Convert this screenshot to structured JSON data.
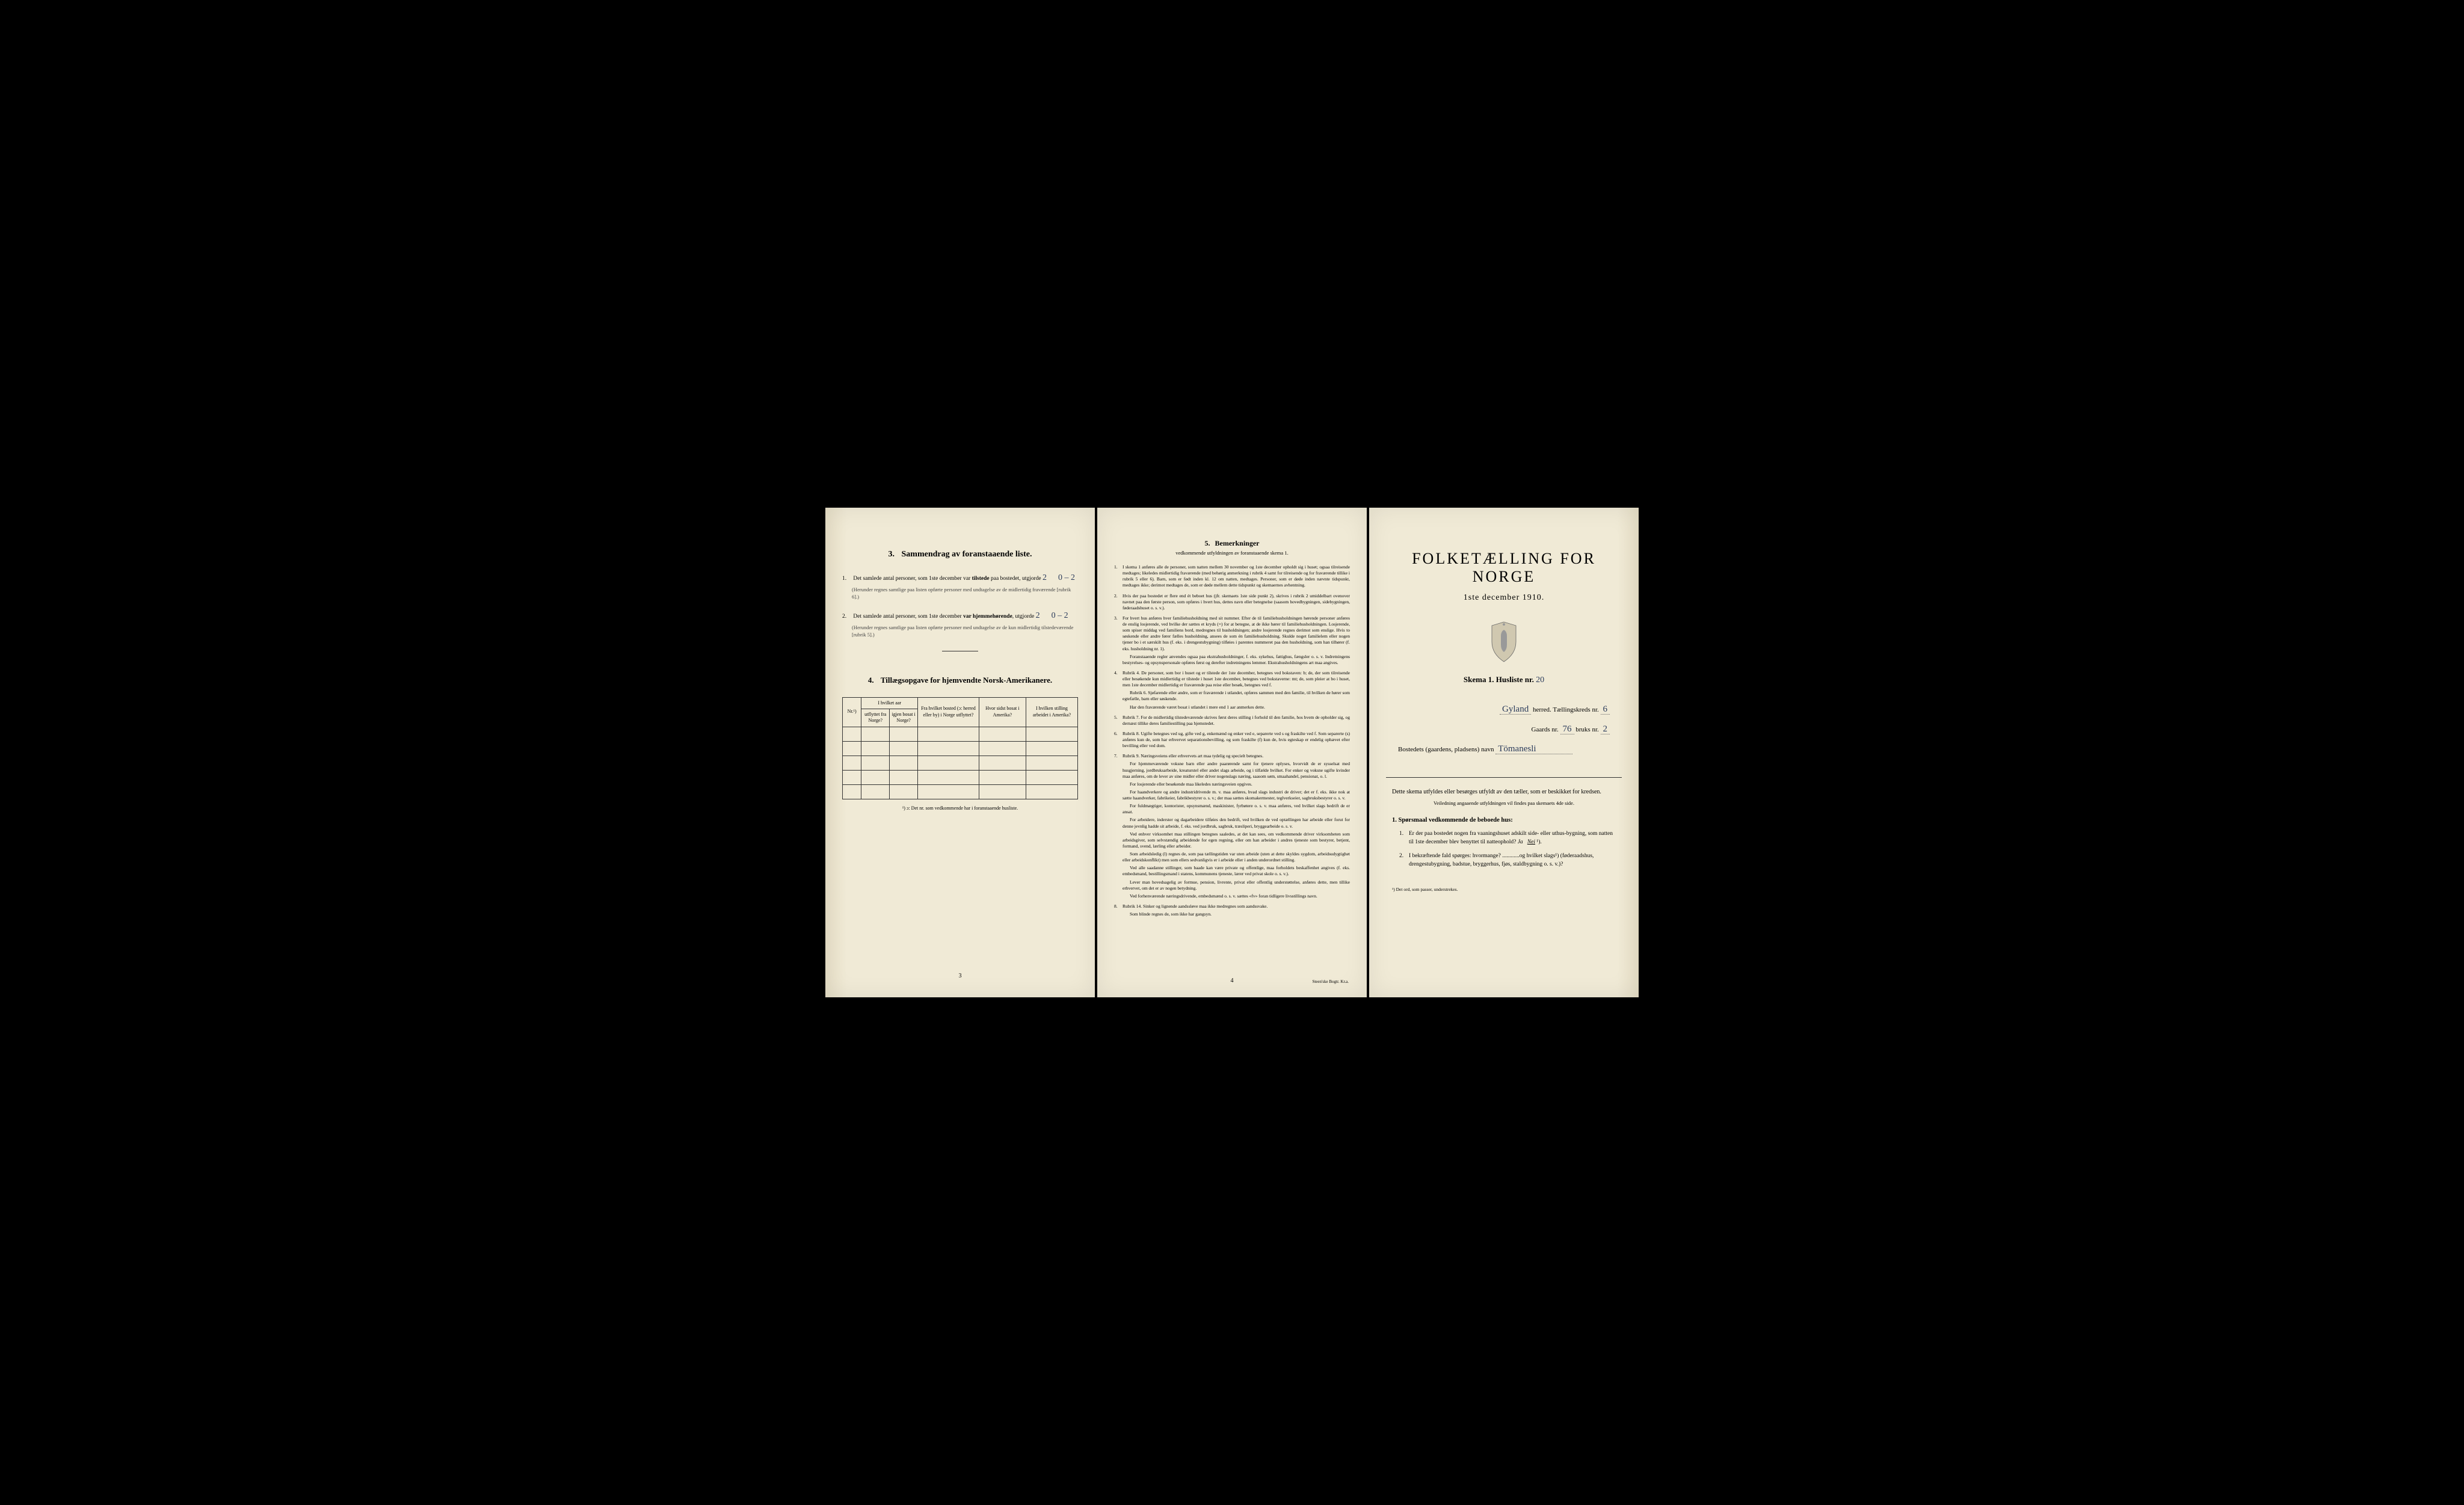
{
  "page1": {
    "section3": {
      "num": "3.",
      "title": "Sammendrag av foranstaaende liste.",
      "item1": {
        "num": "1.",
        "text_a": "Det samlede antal personer, som 1ste december var ",
        "text_b": "tilstede",
        "text_c": " paa bostedet, utgjorde ",
        "hw1": "2",
        "hw2": "0 – 2",
        "note": "(Herunder regnes samtlige paa listen opførte personer med undtagelse av de midlertidig fraværende [rubrik 6].)"
      },
      "item2": {
        "num": "2.",
        "text_a": "Det samlede antal personer, som 1ste december ",
        "text_b": "var hjemmehørende",
        "text_c": ", utgjorde ",
        "hw1": "2",
        "hw2": "0 – 2",
        "note": "(Herunder regnes samtlige paa listen opførte personer med undtagelse av de kun midlertidig tilstedeværende [rubrik 5].)"
      }
    },
    "section4": {
      "num": "4.",
      "title": "Tillægsopgave for hjemvendte Norsk-Amerikanere.",
      "headers": {
        "nr": "Nr.¹)",
        "aar_group": "I hvilket aar",
        "utflyttet": "utflyttet fra Norge?",
        "igjen": "igjen bosat i Norge?",
        "bosted": "Fra hvilket bosted (ɔ: herred eller by) i Norge utflyttet?",
        "amerika_bosat": "Hvor sidst bosat i Amerika?",
        "amerika_stilling": "I hvilken stilling arbeidet i Amerika?"
      },
      "footnote": "¹) ɔ: Det nr. som vedkommende har i foranstaaende husliste."
    },
    "pagenum": "3"
  },
  "page2": {
    "title_num": "5.",
    "title_main": "Bemerkninger",
    "title_sub": "vedkommende utfyldningen av foranstaaende skema 1.",
    "items": [
      {
        "num": "1.",
        "text": "I skema 1 anføres alle de personer, som natten mellem 30 november og 1ste december opholdt sig i huset; ogsaa tilreisende medtages; likeledes midlertidig fraværende (med behørig anmerkning i rubrik 4 samt for tilreisende og for fraværende tillike i rubrik 5 eller 6). Barn, som er født inden kl. 12 om natten, medtages. Personer, som er døde inden nævnte tidspunkt, medtages ikke; derimot medtages de, som er døde mellem dette tidspunkt og skemaernes avhentning."
      },
      {
        "num": "2.",
        "text": "Hvis der paa bostedet er flere end ét beboet hus (jfr. skemaets 1ste side punkt 2), skrives i rubrik 2 umiddelbart ovenover navnet paa den første person, som opføres i hvert hus, dettes navn eller betegnelse (saasom hovedbygningen, sidebygningen, føderaadshuset o. s. v.)."
      },
      {
        "num": "3.",
        "text": "For hvert hus anføres hver familiehusholdning med sit nummer. Efter de til familiehusholdningen hørende personer anføres de enslig losjerende, ved hvilke der sættes et kryds (×) for at betegne, at de ikke hører til familiehusholdningen. Losjerende, som spiser middag ved familiens bord, medregnes til husholdningen; andre losjerende regnes derimot som enslige. Hvis to søskende eller andre fører fælles husholdning, ansees de som én familiehusholdning. Skulde noget familielem eller nogen tjener bo i et særskilt hus (f. eks. i drengestubygning) tilføies i parentes nummeret paa den husholdning, som han tilhører (f. eks. husholdning nr. 1).",
        "paras": [
          "Foranstaaende regler anvendes ogsaa paa ekstrahusholdninger, f. eks. sykehus, fattighus, fængsler o. s. v. Indretningens bestyrelses- og opsynspersonale opføres først og derefter indretningens lemmer. Ekstrahusholdningens art maa angives."
        ]
      },
      {
        "num": "4.",
        "text": "Rubrik 4. De personer, som bor i huset og er tilstede der 1ste december, betegnes ved bokstaven: b; de, der som tilreisende eller besøkende kun midlertidig er tilstede i huset 1ste december, betegnes ved bokstaverne: mt; de, som pleier at bo i huset, men 1ste december midlertidig er fraværende paa reise eller besøk, betegnes ved f.",
        "paras": [
          "Rubrik 6. Sjøfarende eller andre, som er fraværende i utlandet, opføres sammen med den familie, til hvilken de hører som egtefælle, barn eller søskende.",
          "Har den fraværende været bosat i utlandet i mere end 1 aar anmerkes dette."
        ]
      },
      {
        "num": "5.",
        "text": "Rubrik 7. For de midlertidig tilstedeværende skrives først deres stilling i forhold til den familie, hos hvem de opholder sig, og dernæst tillike deres familiestilling paa hjemstedet."
      },
      {
        "num": "6.",
        "text": "Rubrik 8. Ugifte betegnes ved ug, gifte ved g, enkemænd og enker ved e, separerte ved s og fraskilte ved f. Som separerte (s) anføres kun de, som har erhvervet separationsbevilling, og som fraskilte (f) kun de, hvis egteskap er endelig ophævet efter bevilling eller ved dom."
      },
      {
        "num": "7.",
        "text": "Rubrik 9. Næringsveiens eller erhvervets art maa tydelig og specielt betegnes.",
        "paras": [
          "For hjemmeværende voksne barn eller andre paarørende samt for tjenere oplyses, hvorvidt de er sysselsat med husgjerning, jordbruksarbeide, kreaturstel eller andet slags arbeide, og i tilfælde hvilket. For enker og voksne ugifte kvinder maa anføres, om de lever av sine midler eller driver nogenslags næring, saasom søm, smaahandel, pensionat, o. l.",
          "For losjerende eller besøkende maa likeledes næringsveien opgives.",
          "For haandverkere og andre industridrivende m. v. maa anføres, hvad slags industri de driver; det er f. eks. ikke nok at sætte haandverker, fabrikeier, fabrikbestyrer o. s. v.; der maa sættes skomakermester, teglverkseier, sagbruksbestyrer o. s. v.",
          "For fuldmægtiger, kontorister, opsynsmænd, maskinister, fyrbøtere o. s. v. maa anføres, ved hvilket slags bedrift de er ansat.",
          "For arbeidere, inderster og dagarbeidere tilføies den bedrift, ved hvilken de ved optællingen har arbeide eller forut for denne jevnlig hadde sit arbeide, f. eks. ved jordbruk, sagbruk, træsliperi, bryggearbeide o. s. v.",
          "Ved enhver virksomhet maa stillingen betegnes saaledes, at det kan sees, om vedkommende driver virksomheten som arbeidsgiver, som selvstændig arbeidende for egen regning, eller om han arbeider i andres tjeneste som bestyrer, betjent, formand, svend, lærling eller arbeider.",
          "Som arbeidsledig (l) regnes de, som paa tællingstiden var uten arbeide (uten at dette skyldes sygdom, arbeidsudygtighet eller arbeidskonflikt) men som ellers sedvanligvis er i arbeide eller i anden underordnet stilling.",
          "Ved alle saadanne stillinger, som baade kan være private og offentlige, maa forholdets beskaffenhet angives (f. eks. embedsmand, bestillingsmand i statens, kommunens tjeneste, lærer ved privat skole o. s. v.).",
          "Lever man hovedsagelig av formue, pension, livrente, privat eller offentlig understøttelse, anføres dette, men tillike erhvervet, om det er av nogen betydning.",
          "Ved forhenværende næringsdrivende, embedsmænd o. s. v. sættes «fv» foran tidligere livsstillings navn."
        ]
      },
      {
        "num": "8.",
        "text": "Rubrik 14. Sinker og lignende aandssløve maa ikke medregnes som aandssvake.",
        "paras": [
          "Som blinde regnes de, som ikke har gangsyn."
        ]
      }
    ],
    "pagenum": "4",
    "printer": "Steen'ske Bogtr.  Kr.a."
  },
  "page3": {
    "title": "FOLKETÆLLING FOR NORGE",
    "date": "1ste december 1910.",
    "skema_label": "Skema 1.   Husliste nr.",
    "skema_hw": "20",
    "fields": {
      "herred_hw": "Gyland",
      "herred_label": "herred.   Tællingskreds nr.",
      "kreds_hw": "6",
      "gaards_label": "Gaards nr.",
      "gaards_hw": "76",
      "bruks_label": "bruks nr.",
      "bruks_hw": "2",
      "bosted_label": "Bostedets (gaardens, pladsens) navn",
      "bosted_hw": "Tömanesli"
    },
    "instr": "Dette skema utfyldes eller besørges utfyldt av den tæller, som er beskikket for kredsen.",
    "instr_sub": "Veiledning angaaende utfyldningen vil findes paa skemaets 4de side.",
    "q_title": "1. Spørsmaal vedkommende de beboede hus:",
    "q1": {
      "num": "1.",
      "text_a": "Er der paa bostedet nogen fra vaaningshuset adskilt side- eller uthus-bygning, som natten til 1ste december blev benyttet til natteophold?   ",
      "ja": "Ja",
      "nei": "Nei",
      "sup": " ¹)."
    },
    "q2": {
      "num": "2.",
      "text": "I bekræftende fald spørges: hvormange? ............og hvilket slags¹) (føderaadshus, drengestubygning, badstue, bryggerhus, fjøs, staldbygning o. s. v.)?"
    },
    "footnote": "¹) Det ord, som passer, understrekes."
  }
}
